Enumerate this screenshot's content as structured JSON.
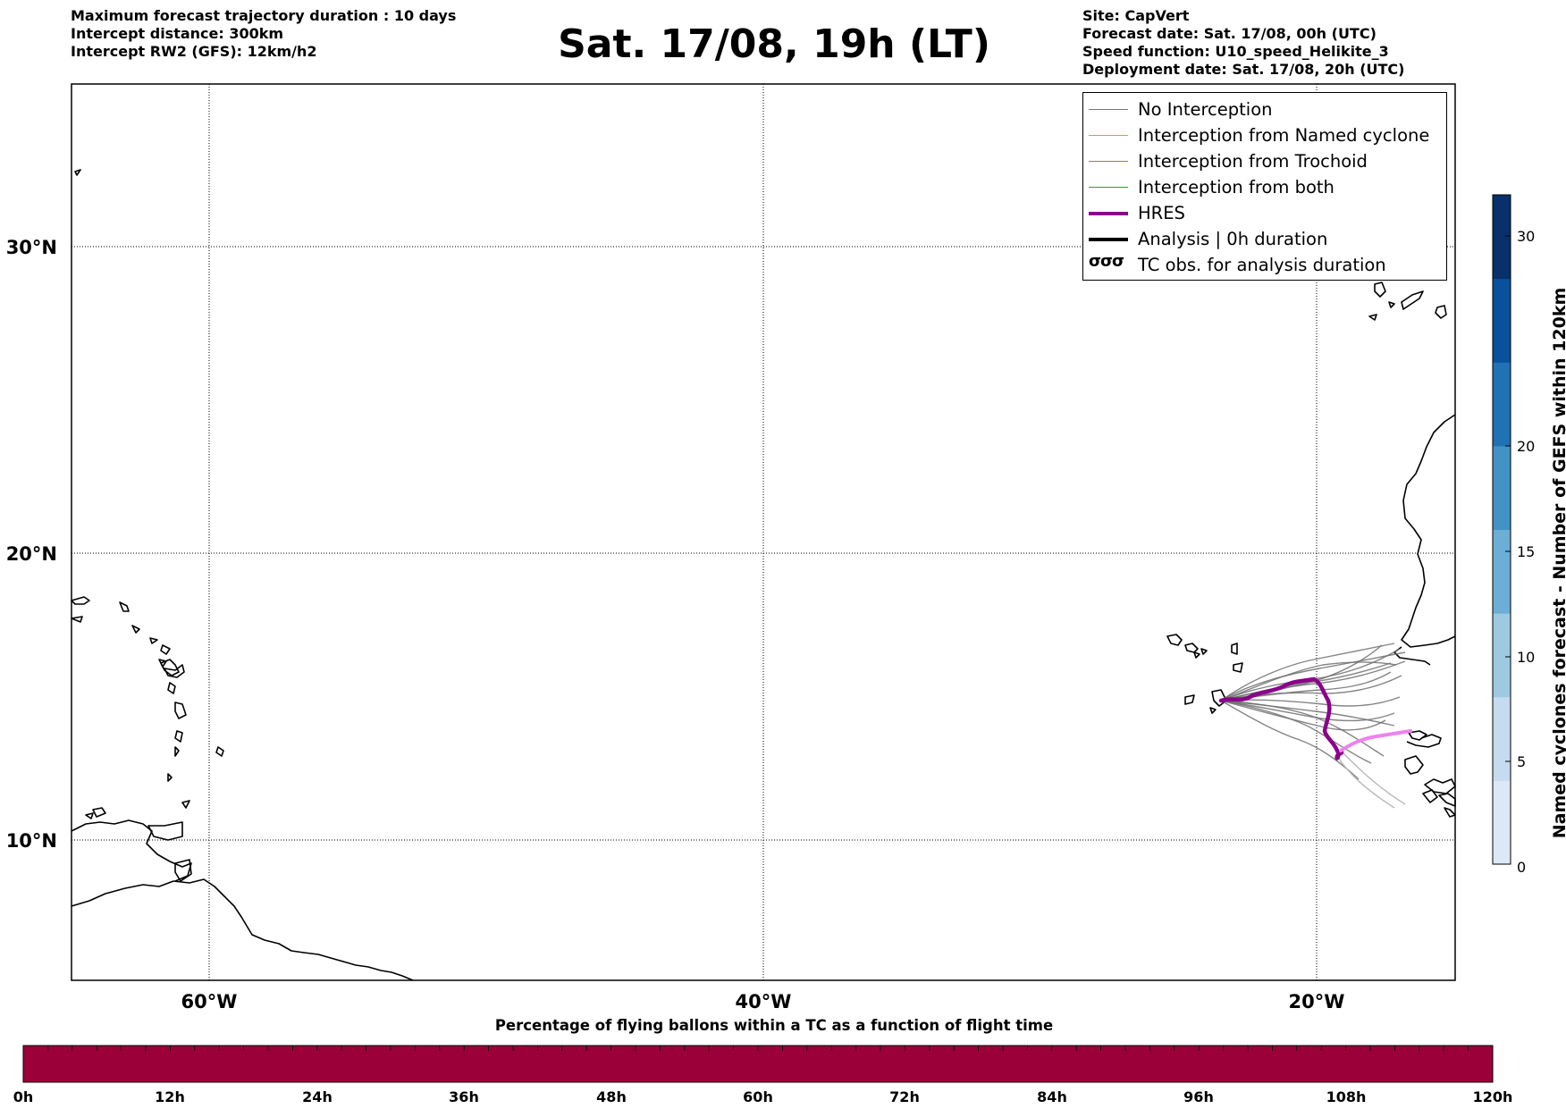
{
  "header": {
    "left_lines": [
      "Maximum forecast trajectory duration : 10 days",
      "Intercept distance: 300km",
      "Intercept RW2 (GFS):  12km/h2"
    ],
    "title": "Sat. 17/08, 19h (LT)",
    "right_lines": [
      "Site: CapVert",
      "Forecast date: Sat. 17/08, 00h (UTC)",
      "Speed function: U10_speed_Helikite_3",
      "Deployment date: Sat. 17/08, 20h (UTC)"
    ]
  },
  "map": {
    "lat_labels": [
      "30°N",
      "20°N",
      "10°N"
    ],
    "lon_labels": [
      "60°W",
      "40°W",
      "20°W"
    ]
  },
  "legend": {
    "items": [
      {
        "label": "No Interception",
        "color": "#777777"
      },
      {
        "label": "Interception from Named cyclone",
        "color": "#ff7f50"
      },
      {
        "label": "Interception from Trochoid",
        "color": "#8b8b2b"
      },
      {
        "label": "Interception from both",
        "color": "#2ca02c"
      },
      {
        "label": "HRES",
        "color": "#8b008b"
      },
      {
        "label": "Analysis | 0h duration",
        "color": "#000000"
      },
      {
        "label": "TC obs. for analysis duration",
        "color": "#000000",
        "symbol": "σσσ"
      }
    ]
  },
  "colorbar_vertical": {
    "title": "Named cyclones forecast - Number of GEFS within 120km",
    "ticks": [
      "30",
      "20",
      "15",
      "10",
      "5",
      "0"
    ],
    "colors": [
      "#dbe9f6",
      "#c6dbef",
      "#9ecae1",
      "#6baed6",
      "#4292c6",
      "#2171b5",
      "#08519c",
      "#08306b"
    ]
  },
  "colorbar_horizontal": {
    "title": "Percentage of flying ballons within a TC as a function of flight time",
    "ticks": [
      "0h",
      "12h",
      "24h",
      "36h",
      "48h",
      "60h",
      "72h",
      "84h",
      "96h",
      "108h",
      "120h"
    ],
    "fill_color": "#9b0039"
  }
}
